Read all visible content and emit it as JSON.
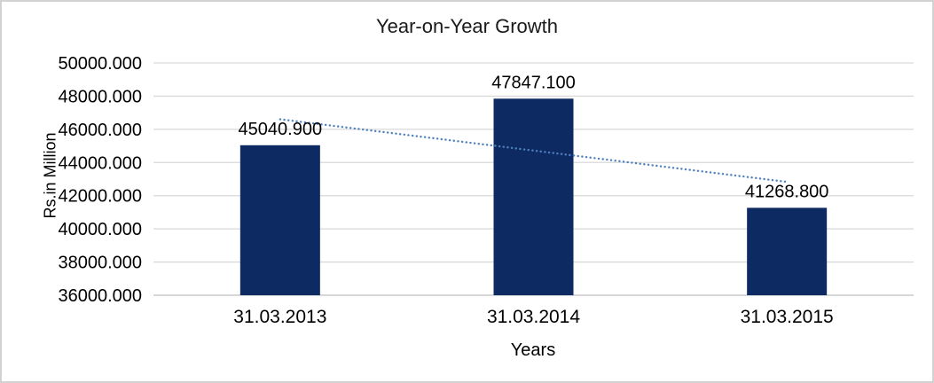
{
  "chart_data": {
    "type": "bar",
    "title": "Year-on-Year Growth",
    "xlabel": "Years",
    "ylabel": "Rs.in Million",
    "categories": [
      "31.03.2013",
      "31.03.2014",
      "31.03.2015"
    ],
    "values": [
      45040.9,
      47847.1,
      41268.8
    ],
    "value_labels": [
      "45040.900",
      "47847.100",
      "41268.800"
    ],
    "ylim": [
      36000,
      50000
    ],
    "ytick_step": 2000,
    "ytick_labels": [
      "36000.000",
      "38000.000",
      "40000.000",
      "42000.000",
      "44000.000",
      "46000.000",
      "48000.000",
      "50000.000"
    ],
    "grid": true,
    "legend": false,
    "trendline": {
      "type": "linear",
      "style": "dotted",
      "y_start": 46605,
      "y_end": 42833
    },
    "colors": {
      "bar": "#0D2A63",
      "trendline": "#4F81BD",
      "gridline": "#D9D9D9",
      "axis_line": "#BFBFBF",
      "text": "#000000",
      "title_text": "#1A1A1A"
    }
  }
}
